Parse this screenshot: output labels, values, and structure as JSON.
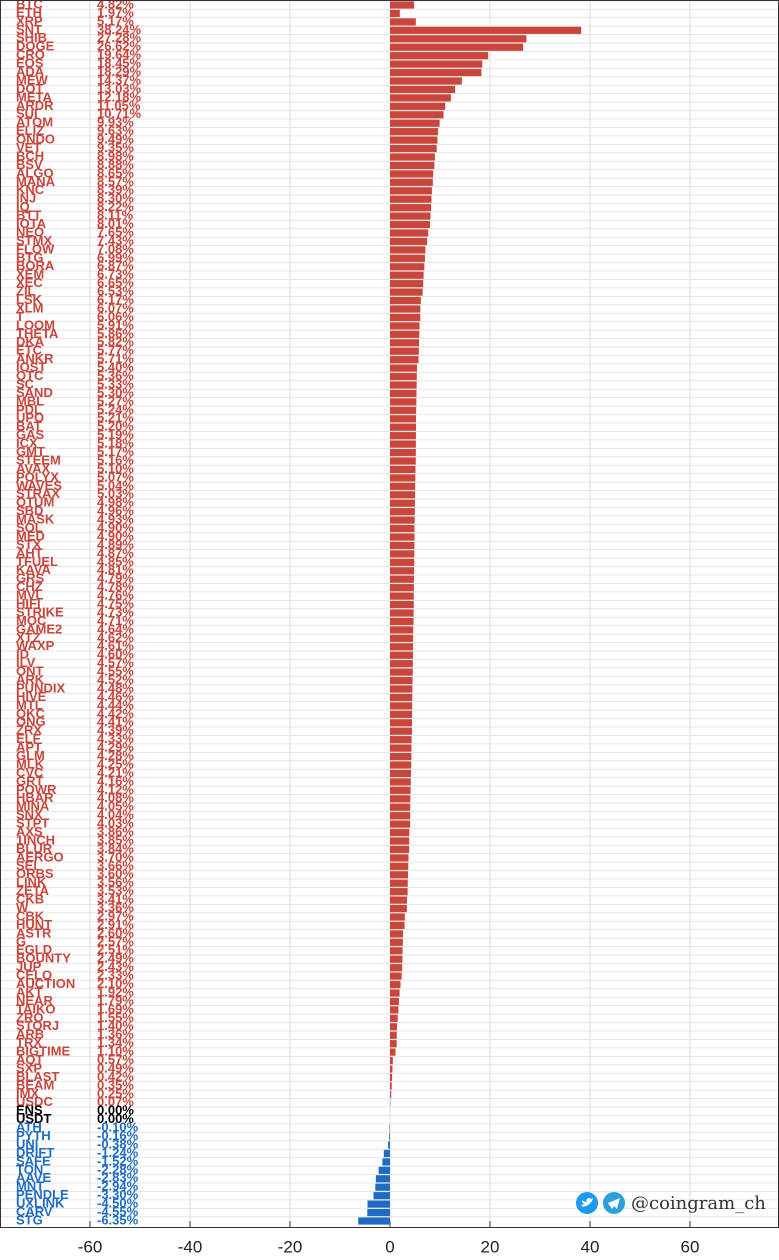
{
  "chart_data": {
    "type": "hbar",
    "categories": [
      "BTC",
      "ETH",
      "XRP",
      "SNT",
      "SHIB",
      "DOGE",
      "CRO",
      "EOS",
      "ADA",
      "MEW",
      "DOT",
      "META",
      "ARDR",
      "SUI",
      "ATOM",
      "ELIZ",
      "ONDO",
      "VET",
      "BCH",
      "BSV",
      "ALGO",
      "MANA",
      "KNC",
      "INJ",
      "IQ",
      "BTT",
      "IOTA",
      "NEO",
      "STMX",
      "FLOW",
      "BTG",
      "BORA",
      "XEM",
      "XEC",
      "ZIL",
      "LSK",
      "XLM",
      "T",
      "LOOM",
      "THETA",
      "DKA",
      "ETC",
      "ANKR",
      "IOST",
      "QTC",
      "SC",
      "SAND",
      "MBL",
      "PDL",
      "UPO",
      "BAT",
      "GAS",
      "ICX",
      "GMT",
      "STEEM",
      "AVAX",
      "POLYX",
      "WAVES",
      "STRAX",
      "QTUM",
      "SBD",
      "MASK",
      "SOL",
      "MED",
      "STX",
      "AHT",
      "TFUEL",
      "KAVA",
      "GRS",
      "CHZ",
      "MVL",
      "HIFI",
      "STRIKE",
      "MOC",
      "GAME2",
      "XTZ",
      "WAXP",
      "ID",
      "ILV",
      "ONT",
      "ARK",
      "PUNDIX",
      "HIVE",
      "MTL",
      "QKC",
      "ONG",
      "ZRX",
      "ELF",
      "APT",
      "GLM",
      "MLK",
      "CVC",
      "GRT",
      "POWR",
      "HBAR",
      "MINA",
      "SNX",
      "STPT",
      "AXS",
      "1INCH",
      "BLUR",
      "AERGO",
      "SEI",
      "ORBS",
      "LINK",
      "ZETA",
      "CKB",
      "W",
      "CBK",
      "HUNT",
      "ASTR",
      "G",
      "EGLD",
      "BOUNTY",
      "JUP",
      "CELO",
      "AUCTION",
      "AKT",
      "NEAR",
      "TAIKO",
      "ZRO",
      "STORJ",
      "ARB",
      "TRX",
      "BIGTIME",
      "AQT",
      "SXP",
      "BLAST",
      "BEAM",
      "IMX",
      "USDC",
      "ENS",
      "USDT",
      "ATH",
      "PYTH",
      "UNI",
      "DRIFT",
      "SAFE",
      "TON",
      "AAVE",
      "MNT",
      "PENDLE",
      "UXLINK",
      "CARV",
      "STG"
    ],
    "values": [
      4.82,
      1.97,
      5.17,
      38.24,
      27.28,
      26.62,
      19.64,
      18.45,
      18.29,
      14.37,
      13.03,
      12.18,
      11.05,
      10.71,
      9.93,
      9.63,
      9.49,
      9.35,
      8.98,
      8.88,
      8.65,
      8.57,
      8.39,
      8.3,
      8.22,
      8.11,
      8.01,
      7.65,
      7.43,
      7.08,
      6.99,
      6.87,
      6.73,
      6.65,
      6.53,
      6.17,
      6.07,
      6.06,
      5.91,
      5.86,
      5.82,
      5.77,
      5.71,
      5.4,
      5.36,
      5.33,
      5.3,
      5.27,
      5.24,
      5.21,
      5.2,
      5.19,
      5.18,
      5.17,
      5.16,
      5.1,
      5.07,
      5.04,
      5.03,
      4.98,
      4.96,
      4.93,
      4.9,
      4.9,
      4.89,
      4.87,
      4.85,
      4.81,
      4.79,
      4.78,
      4.76,
      4.75,
      4.73,
      4.71,
      4.64,
      4.62,
      4.61,
      4.6,
      4.57,
      4.55,
      4.52,
      4.48,
      4.46,
      4.44,
      4.42,
      4.41,
      4.39,
      4.33,
      4.29,
      4.28,
      4.25,
      4.21,
      4.16,
      4.12,
      4.08,
      4.05,
      4.04,
      4.03,
      3.86,
      3.85,
      3.84,
      3.7,
      3.66,
      3.6,
      3.56,
      3.53,
      3.41,
      3.36,
      2.97,
      2.91,
      2.6,
      2.57,
      2.51,
      2.49,
      2.43,
      2.33,
      2.1,
      1.92,
      1.79,
      1.69,
      1.55,
      1.4,
      1.36,
      1.34,
      1.1,
      0.57,
      0.49,
      0.42,
      0.35,
      0.25,
      0.07,
      0,
      0,
      -0.1,
      -0.16,
      -0.38,
      -1.24,
      -1.52,
      -2.28,
      -2.83,
      -2.94,
      -3.3,
      -4.5,
      -4.55,
      -6.35
    ],
    "value_labels": [
      "4.82%",
      "1.97%",
      "5.17%",
      "38.24%",
      "27.28%",
      "26.62%",
      "19.64%",
      "18.45%",
      "18.29%",
      "14.37%",
      "13.03%",
      "12.18%",
      "11.05%",
      "10.71%",
      "9.93%",
      "9.63%",
      "9.49%",
      "9.35%",
      "8.98%",
      "8.88%",
      "8.65%",
      "8.57%",
      "8.39%",
      "8.30%",
      "8.22%",
      "8.11%",
      "8.01%",
      "7.65%",
      "7.43%",
      "7.08%",
      "6.99%",
      "6.87%",
      "6.73%",
      "6.65%",
      "6.53%",
      "6.17%",
      "6.07%",
      "6.06%",
      "5.91%",
      "5.86%",
      "5.82%",
      "5.77%",
      "5.71%",
      "5.40%",
      "5.36%",
      "5.33%",
      "5.30%",
      "5.27%",
      "5.24%",
      "5.21%",
      "5.20%",
      "5.19%",
      "5.18%",
      "5.17%",
      "5.16%",
      "5.10%",
      "5.07%",
      "5.04%",
      "5.03%",
      "4.98%",
      "4.96%",
      "4.93%",
      "4.90%",
      "4.90%",
      "4.89%",
      "4.87%",
      "4.85%",
      "4.81%",
      "4.79%",
      "4.78%",
      "4.76%",
      "4.75%",
      "4.73%",
      "4.71%",
      "4.64%",
      "4.62%",
      "4.61%",
      "4.60%",
      "4.57%",
      "4.55%",
      "4.52%",
      "4.48%",
      "4.46%",
      "4.44%",
      "4.42%",
      "4.41%",
      "4.39%",
      "4.33%",
      "4.29%",
      "4.28%",
      "4.25%",
      "4.21%",
      "4.16%",
      "4.12%",
      "4.08%",
      "4.05%",
      "4.04%",
      "4.03%",
      "3.86%",
      "3.85%",
      "3.84%",
      "3.70%",
      "3.66%",
      "3.60%",
      "3.56%",
      "3.53%",
      "3.41%",
      "3.36%",
      "2.97%",
      "2.91%",
      "2.60%",
      "2.57%",
      "2.51%",
      "2.49%",
      "2.43%",
      "2.33%",
      "2.10%",
      "1.92%",
      "1.79%",
      "1.69%",
      "1.55%",
      "1.40%",
      "1.36%",
      "1.34%",
      "1.10%",
      "0.57%",
      "0.49%",
      "0.42%",
      "0.35%",
      "0.25%",
      "0.07%",
      "0.00%",
      "0.00%",
      "-0.10%",
      "-0.16%",
      "-0.38%",
      "-1.24%",
      "-1.52%",
      "-2.28%",
      "-2.83%",
      "-2.94%",
      "-3.30%",
      "-4.50%",
      "-4.55%",
      "-6.35%"
    ],
    "positive_color": "#c9463d",
    "negative_color": "#1f6cc4",
    "zero_color": "#000000",
    "xlim": [
      -78,
      77.8
    ],
    "xticks": [
      -60,
      -40,
      -20,
      0,
      20,
      40,
      60
    ],
    "grid": true,
    "watermark": "@coingram_ch"
  }
}
